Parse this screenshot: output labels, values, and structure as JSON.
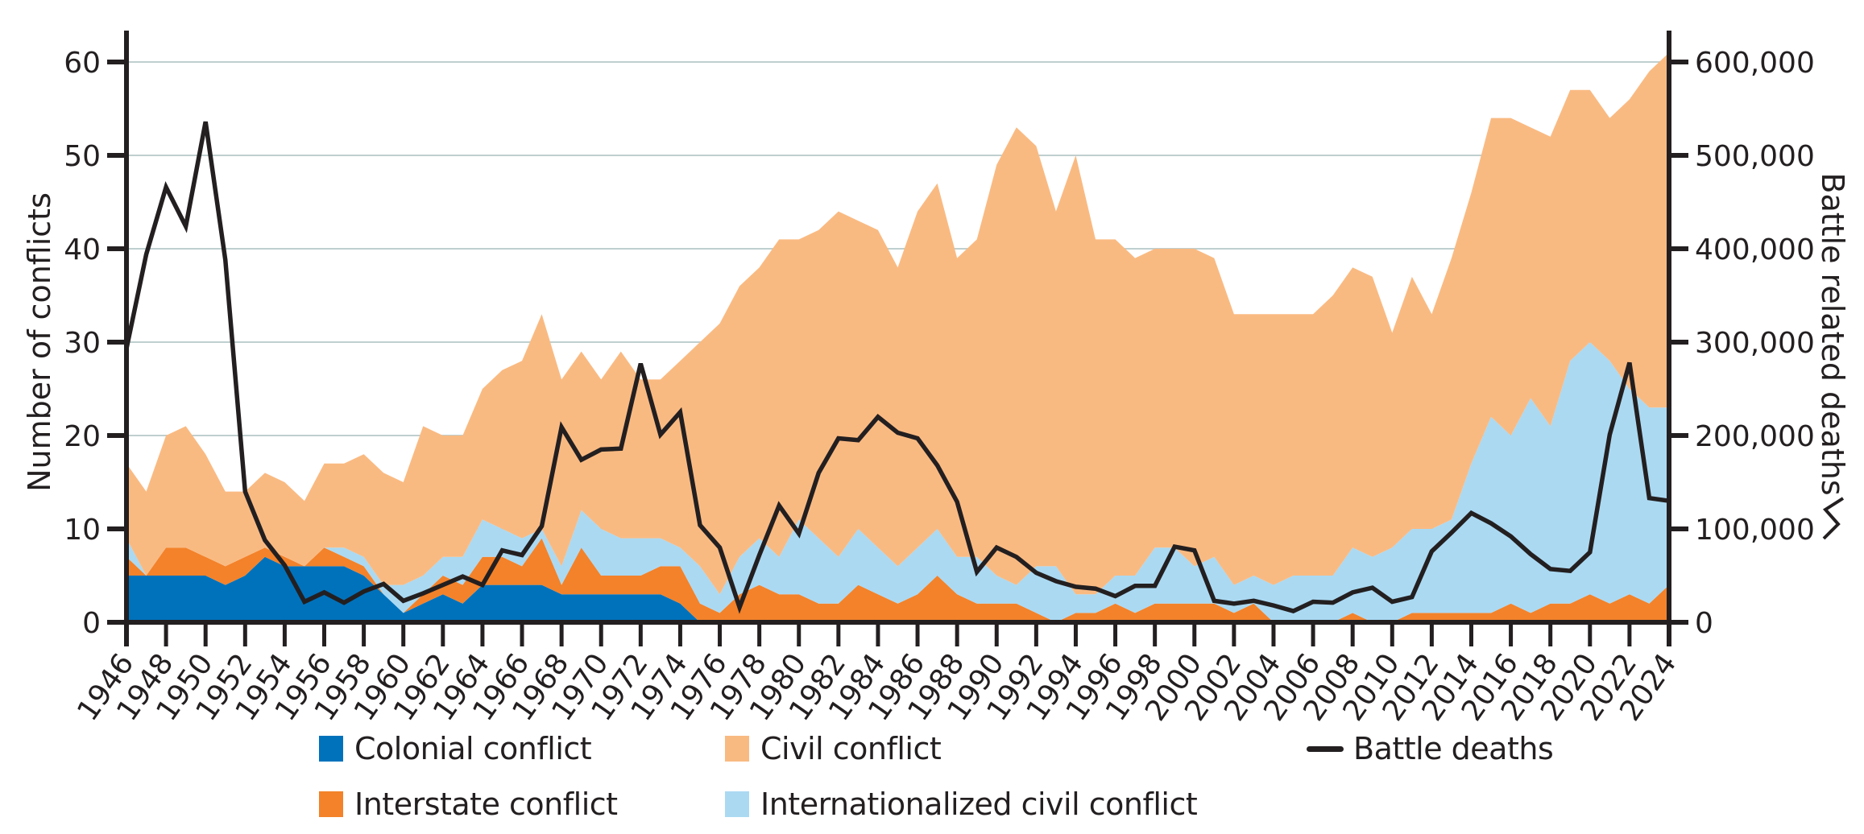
{
  "chart_data": {
    "type": "area",
    "stacked": true,
    "title": "",
    "xlabel": "",
    "ylabel": "Number of conflicts",
    "y2label": "Battle related deaths",
    "ylim": [
      0,
      60
    ],
    "y2lim": [
      0,
      600000
    ],
    "xlim": [
      1946,
      2024
    ],
    "grid": true,
    "y_ticks": [
      "0",
      "10",
      "20",
      "30",
      "40",
      "50",
      "60"
    ],
    "y2_ticks": [
      "0",
      "100,000",
      "200,000",
      "300,000",
      "400,000",
      "500,000",
      "600,000"
    ],
    "x_ticks": [
      "1946",
      "1948",
      "1950",
      "1952",
      "1954",
      "1956",
      "1958",
      "1960",
      "1962",
      "1964",
      "1966",
      "1968",
      "1970",
      "1972",
      "1974",
      "1976",
      "1978",
      "1980",
      "1982",
      "1984",
      "1986",
      "1988",
      "1990",
      "1992",
      "1994",
      "1996",
      "1998",
      "2000",
      "2002",
      "2004",
      "2006",
      "2008",
      "2010",
      "2012",
      "2014",
      "2016",
      "2018",
      "2020",
      "2022",
      "2024"
    ],
    "x": [
      1946,
      1947,
      1948,
      1949,
      1950,
      1951,
      1952,
      1953,
      1954,
      1955,
      1956,
      1957,
      1958,
      1959,
      1960,
      1961,
      1962,
      1963,
      1964,
      1965,
      1966,
      1967,
      1968,
      1969,
      1970,
      1971,
      1972,
      1973,
      1974,
      1975,
      1976,
      1977,
      1978,
      1979,
      1980,
      1981,
      1982,
      1983,
      1984,
      1985,
      1986,
      1987,
      1988,
      1989,
      1990,
      1991,
      1992,
      1993,
      1994,
      1995,
      1996,
      1997,
      1998,
      1999,
      2000,
      2001,
      2002,
      2003,
      2004,
      2005,
      2006,
      2007,
      2008,
      2009,
      2010,
      2011,
      2012,
      2013,
      2014,
      2015,
      2016,
      2017,
      2018,
      2019,
      2020,
      2021,
      2022,
      2023,
      2024
    ],
    "series": [
      {
        "name": "Colonial conflict",
        "axis": "left",
        "color": "#0072bc",
        "values": [
          5,
          5,
          5,
          5,
          5,
          4,
          5,
          7,
          6,
          6,
          6,
          6,
          5,
          3,
          1,
          2,
          3,
          2,
          4,
          4,
          4,
          4,
          3,
          3,
          3,
          3,
          3,
          3,
          2,
          0,
          0,
          0,
          0,
          0,
          0,
          0,
          0,
          0,
          0,
          0,
          0,
          0,
          0,
          0,
          0,
          0,
          0,
          0,
          0,
          0,
          0,
          0,
          0,
          0,
          0,
          0,
          0,
          0,
          0,
          0,
          0,
          0,
          0,
          0,
          0,
          0,
          0,
          0,
          0,
          0,
          0,
          0,
          0,
          0,
          0,
          0,
          0,
          0,
          0
        ]
      },
      {
        "name": "Interstate conflict",
        "axis": "left",
        "color": "#f3822a",
        "values": [
          2,
          0,
          3,
          3,
          2,
          2,
          2,
          1,
          1,
          0,
          2,
          1,
          1,
          0,
          0,
          1,
          2,
          2,
          3,
          3,
          2,
          5,
          1,
          5,
          2,
          2,
          2,
          3,
          4,
          2,
          1,
          3,
          4,
          3,
          3,
          2,
          2,
          4,
          3,
          2,
          3,
          5,
          3,
          2,
          2,
          2,
          1,
          0,
          1,
          1,
          2,
          1,
          2,
          2,
          2,
          2,
          1,
          2,
          0,
          0,
          0,
          0,
          1,
          0,
          0,
          1,
          1,
          1,
          1,
          1,
          2,
          1,
          2,
          2,
          3,
          2,
          3,
          2,
          4
        ]
      },
      {
        "name": "Internationalized civil conflict",
        "axis": "left",
        "color": "#abd9f2",
        "values": [
          2,
          0,
          0,
          0,
          0,
          0,
          0,
          0,
          0,
          0,
          0,
          1,
          1,
          1,
          3,
          2,
          2,
          3,
          4,
          3,
          3,
          1,
          2,
          4,
          5,
          4,
          4,
          3,
          2,
          4,
          2,
          4,
          5,
          4,
          8,
          7,
          5,
          6,
          5,
          4,
          5,
          5,
          4,
          5,
          3,
          2,
          5,
          6,
          2,
          2,
          3,
          4,
          6,
          6,
          4,
          5,
          3,
          3,
          4,
          5,
          5,
          5,
          7,
          7,
          8,
          9,
          9,
          10,
          16,
          21,
          18,
          23,
          19,
          26,
          27,
          26,
          22,
          21,
          19
        ]
      },
      {
        "name": "Civil conflict",
        "axis": "left",
        "color": "#f9ba82",
        "values": [
          8,
          9,
          12,
          13,
          11,
          8,
          7,
          8,
          8,
          7,
          9,
          9,
          11,
          12,
          11,
          16,
          13,
          13,
          14,
          17,
          19,
          23,
          20,
          17,
          16,
          20,
          17,
          17,
          20,
          24,
          29,
          29,
          29,
          34,
          30,
          33,
          37,
          33,
          34,
          32,
          36,
          37,
          32,
          34,
          44,
          49,
          45,
          38,
          47,
          38,
          36,
          34,
          32,
          32,
          34,
          32,
          29,
          28,
          29,
          28,
          28,
          30,
          30,
          30,
          23,
          27,
          23,
          28,
          29,
          32,
          34,
          29,
          31,
          29,
          27,
          26,
          31,
          36,
          38
        ]
      },
      {
        "name": "Battle deaths",
        "axis": "right",
        "type": "line",
        "color": "#231f20",
        "values": [
          293000,
          394000,
          466000,
          424000,
          536000,
          388000,
          140000,
          88000,
          61000,
          22000,
          32000,
          21000,
          33000,
          41000,
          23000,
          31000,
          40000,
          49000,
          40000,
          77000,
          72000,
          103000,
          209000,
          174000,
          185000,
          186000,
          277000,
          201000,
          225000,
          104000,
          80000,
          16000,
          72000,
          125000,
          95000,
          160000,
          197000,
          195000,
          220000,
          203000,
          197000,
          168000,
          129000,
          54000,
          80000,
          70000,
          53000,
          44000,
          38000,
          36000,
          28000,
          39000,
          39000,
          81000,
          77000,
          23000,
          20000,
          23000,
          18000,
          12000,
          22000,
          21000,
          32000,
          37000,
          22000,
          27000,
          76000,
          96000,
          117000,
          106000,
          92000,
          73000,
          57000,
          55000,
          75000,
          201000,
          278000,
          133000,
          130000
        ]
      }
    ],
    "legend": {
      "placement": "bottom",
      "items": [
        {
          "label": "Colonial conflict",
          "kind": "swatch",
          "color": "#0072bc"
        },
        {
          "label": "Civil conflict",
          "kind": "swatch",
          "color": "#f9ba82"
        },
        {
          "label": "Battle deaths",
          "kind": "line",
          "color": "#231f20"
        },
        {
          "label": "Interstate conflict",
          "kind": "swatch",
          "color": "#f3822a"
        },
        {
          "label": "Internationalized civil conflict",
          "kind": "swatch",
          "color": "#abd9f2"
        }
      ]
    },
    "colors": {
      "axis": "#231f20",
      "gridline": "#bfcfcf"
    }
  }
}
